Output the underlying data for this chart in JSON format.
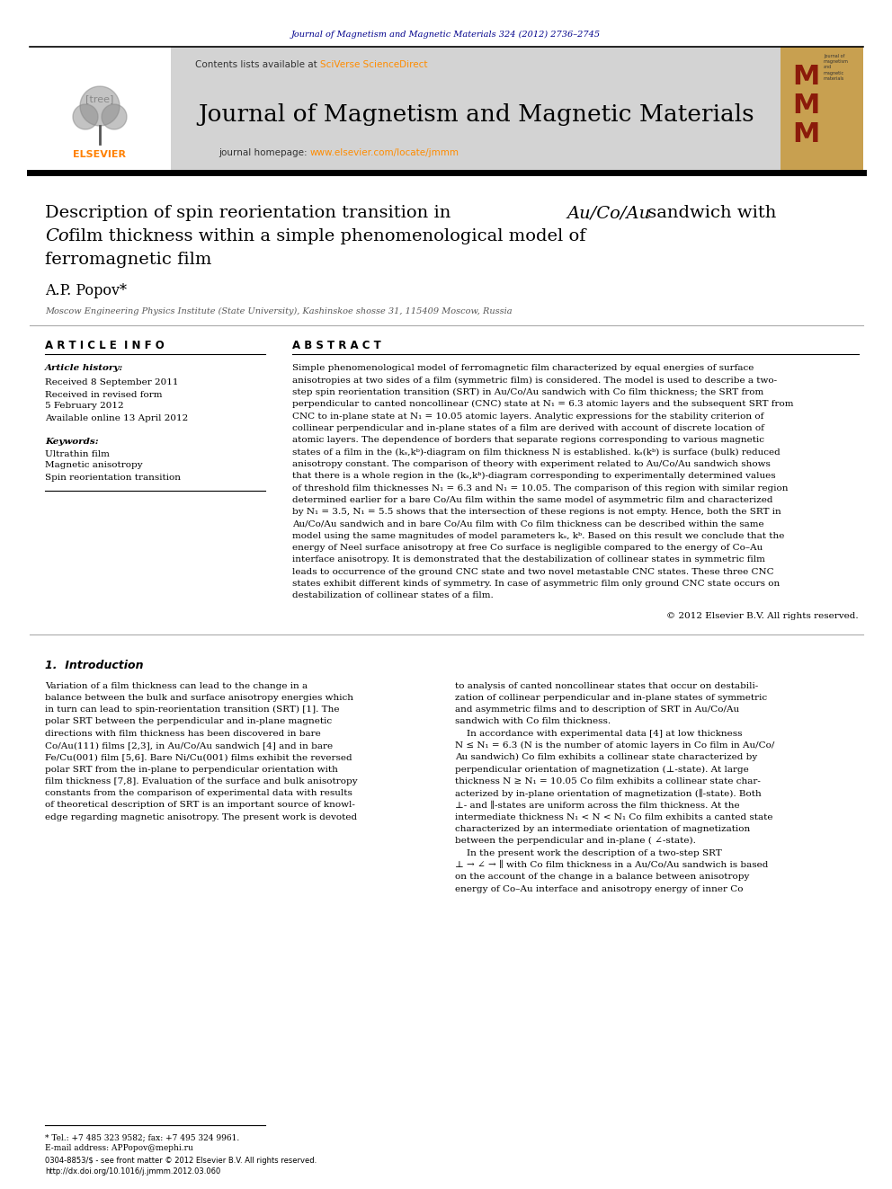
{
  "page_width": 9.92,
  "page_height": 13.23,
  "bg_color": "#ffffff",
  "journal_ref_text": "Journal of Magnetism and Magnetic Materials 324 (2012) 2736–2745",
  "journal_ref_color": "#00008B",
  "contents_text": "Contents lists available at ",
  "sciverse_text": "SciVerse ScienceDirect",
  "sciverse_color": "#FF8C00",
  "journal_name": "Journal of Magnetism and Magnetic Materials",
  "journal_homepage_text": "journal homepage: ",
  "journal_url": "www.elsevier.com/locate/jmmm",
  "journal_url_color": "#FF8C00",
  "header_bg": "#d3d3d3",
  "author": "A.P. Popov*",
  "affiliation": "Moscow Engineering Physics Institute (State University), Kashinskoe shosse 31, 115409 Moscow, Russia",
  "section_article_info": "A R T I C L E  I N F O",
  "section_abstract": "A B S T R A C T",
  "article_history_label": "Article history:",
  "received_text": "Received 8 September 2011",
  "revised_line1": "Received in revised form",
  "revised_line2": "5 February 2012",
  "available_text": "Available online 13 April 2012",
  "keywords_label": "Keywords:",
  "keyword1": "Ultrathin film",
  "keyword2": "Magnetic anisotropy",
  "keyword3": "Spin reorientation transition",
  "copyright_text": "© 2012 Elsevier B.V. All rights reserved.",
  "intro_heading": "1.  Introduction",
  "footnote_star": "* Tel.: +7 485 323 9582; fax: +7 495 324 9961.",
  "footnote_email": "E-mail address: APPopov@mephi.ru",
  "footer_line1": "0304-8853/$ - see front matter © 2012 Elsevier B.V. All rights reserved.",
  "footer_line2": "http://dx.doi.org/10.1016/j.jmmm.2012.03.060",
  "abstract_lines": [
    "Simple phenomenological model of ferromagnetic film characterized by equal energies of surface",
    "anisotropies at two sides of a film (symmetric film) is considered. The model is used to describe a two-",
    "step spin reorientation transition (SRT) in Au/Co/Au sandwich with Co film thickness; the SRT from",
    "perpendicular to canted noncollinear (CNC) state at N₁ = 6.3 atomic layers and the subsequent SRT from",
    "CNC to in-plane state at N₁ = 10.05 atomic layers. Analytic expressions for the stability criterion of",
    "collinear perpendicular and in-plane states of a film are derived with account of discrete location of",
    "atomic layers. The dependence of borders that separate regions corresponding to various magnetic",
    "states of a film in the (kₛ,kᵇ)-diagram on film thickness N is established. kₛ(kᵇ) is surface (bulk) reduced",
    "anisotropy constant. The comparison of theory with experiment related to Au/Co/Au sandwich shows",
    "that there is a whole region in the (kₛ,kᵇ)-diagram corresponding to experimentally determined values",
    "of threshold film thicknesses N₁ = 6.3 and N₁ = 10.05. The comparison of this region with similar region",
    "determined earlier for a bare Co/Au film within the same model of asymmetric film and characterized",
    "by N₁ = 3.5, N₁ = 5.5 shows that the intersection of these regions is not empty. Hence, both the SRT in",
    "Au/Co/Au sandwich and in bare Co/Au film with Co film thickness can be described within the same",
    "model using the same magnitudes of model parameters kₛ, kᵇ. Based on this result we conclude that the",
    "energy of Neel surface anisotropy at free Co surface is negligible compared to the energy of Co–Au",
    "interface anisotropy. It is demonstrated that the destabilization of collinear states in symmetric film",
    "leads to occurrence of the ground CNC state and two novel metastable CNC states. These three CNC",
    "states exhibit different kinds of symmetry. In case of asymmetric film only ground CNC state occurs on",
    "destabilization of collinear states of a film."
  ],
  "intro_col1_lines": [
    "Variation of a film thickness can lead to the change in a",
    "balance between the bulk and surface anisotropy energies which",
    "in turn can lead to spin-reorientation transition (SRT) [1]. The",
    "polar SRT between the perpendicular and in-plane magnetic",
    "directions with film thickness has been discovered in bare",
    "Co/Au(111) films [2,3], in Au/Co/Au sandwich [4] and in bare",
    "Fe/Cu(001) film [5,6]. Bare Ni/Cu(001) films exhibit the reversed",
    "polar SRT from the in-plane to perpendicular orientation with",
    "film thickness [7,8]. Evaluation of the surface and bulk anisotropy",
    "constants from the comparison of experimental data with results",
    "of theoretical description of SRT is an important source of knowl-",
    "edge regarding magnetic anisotropy. The present work is devoted"
  ],
  "intro_col2_lines": [
    "to analysis of canted noncollinear states that occur on destabili-",
    "zation of collinear perpendicular and in-plane states of symmetric",
    "and asymmetric films and to description of SRT in Au/Co/Au",
    "sandwich with Co film thickness.",
    "    In accordance with experimental data [4] at low thickness",
    "N ≤ N₁ = 6.3 (N is the number of atomic layers in Co film in Au/Co/",
    "Au sandwich) Co film exhibits a collinear state characterized by",
    "perpendicular orientation of magnetization (⊥-state). At large",
    "thickness N ≥ N₁ = 10.05 Co film exhibits a collinear state char-",
    "acterized by in-plane orientation of magnetization (∥-state). Both",
    "⊥- and ∥-states are uniform across the film thickness. At the",
    "intermediate thickness N₁ < N < N₁ Co film exhibits a canted state",
    "characterized by an intermediate orientation of magnetization",
    "between the perpendicular and in-plane ( ∠-state).",
    "    In the present work the description of a two-step SRT",
    "⊥ → ∠ → ∥ with Co film thickness in a Au/Co/Au sandwich is based",
    "on the account of the change in a balance between anisotropy",
    "energy of Co–Au interface and anisotropy energy of inner Co"
  ]
}
